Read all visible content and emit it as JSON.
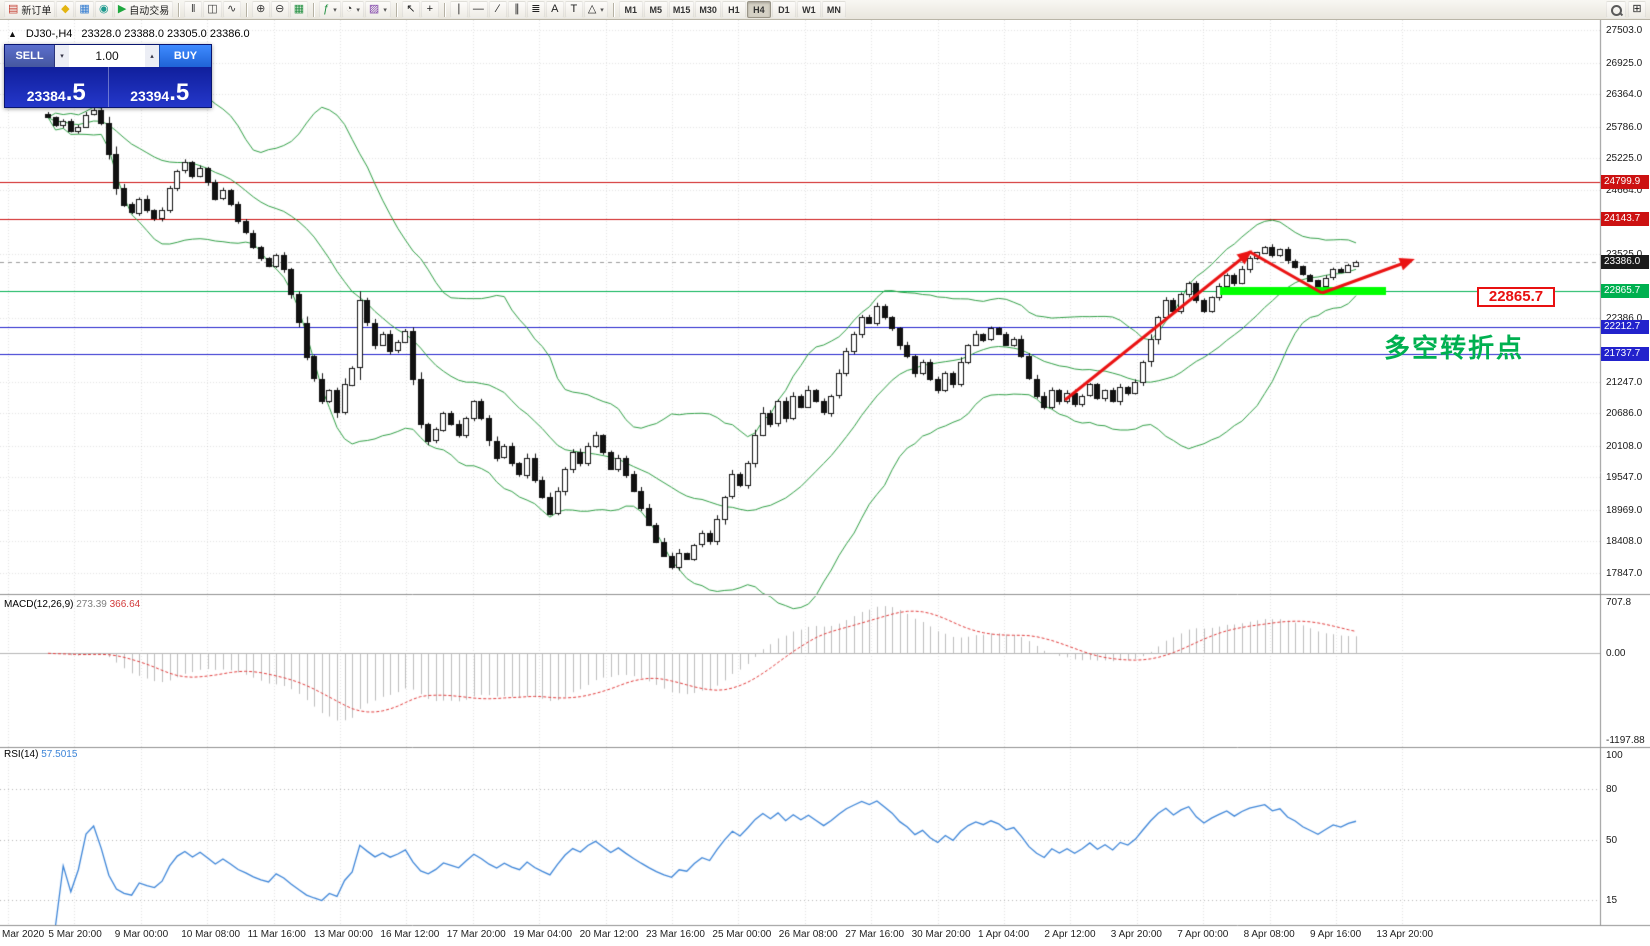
{
  "icons": {
    "caret_down": "▾",
    "caret_up": "▴",
    "collapse": "▲",
    "windows": "⊞"
  },
  "toolbar": {
    "items": [
      {
        "type": "button",
        "name": "new-order-button",
        "glyph": "▤",
        "color": "#c33b2e",
        "label": "新订单"
      },
      {
        "type": "button",
        "name": "metaeditor-button",
        "glyph": "◆",
        "color": "#e3b410"
      },
      {
        "type": "button",
        "name": "market-button",
        "glyph": "▦",
        "color": "#2e79d0"
      },
      {
        "type": "button",
        "name": "data-window-button",
        "glyph": "◉",
        "color": "#1e9a8e"
      },
      {
        "type": "button",
        "name": "autotrading-button",
        "glyph": "▶",
        "color": "#1fa83f",
        "label": "自动交易"
      },
      {
        "type": "sep"
      },
      {
        "type": "button",
        "name": "bar-chart-button",
        "glyph": "‖",
        "color": "#3a3a3a"
      },
      {
        "type": "button",
        "name": "candlestick-chart-button",
        "glyph": "◫",
        "color": "#3a3a3a"
      },
      {
        "type": "button",
        "name": "line-chart-button",
        "glyph": "∿",
        "color": "#3a3a3a"
      },
      {
        "type": "sep"
      },
      {
        "type": "button",
        "name": "zoom-in-button",
        "glyph": "⊕",
        "color": "#3a3a3a"
      },
      {
        "type": "button",
        "name": "zoom-out-button",
        "glyph": "⊖",
        "color": "#3a3a3a"
      },
      {
        "type": "button",
        "name": "grid-button",
        "glyph": "▦",
        "color": "#1e8e3e"
      },
      {
        "type": "sep"
      },
      {
        "type": "button",
        "name": "indicators-button",
        "glyph": "ƒ",
        "color": "#1e8e3e",
        "caret": true
      },
      {
        "type": "button",
        "name": "periods-button",
        "glyph": "◔",
        "color": "#3a3a3a",
        "caret": true
      },
      {
        "type": "button",
        "name": "templates-button",
        "glyph": "▨",
        "color": "#7d3fa8",
        "caret": true
      },
      {
        "type": "sep"
      },
      {
        "type": "button",
        "name": "cursor-button",
        "glyph": "↖",
        "color": "#222222"
      },
      {
        "type": "button",
        "name": "crosshair-button",
        "glyph": "+",
        "color": "#222222"
      },
      {
        "type": "sep"
      },
      {
        "type": "button",
        "name": "vertical-line-button",
        "glyph": "∣",
        "color": "#222222"
      },
      {
        "type": "button",
        "name": "horizontal-line-button",
        "glyph": "—",
        "color": "#222222"
      },
      {
        "type": "button",
        "name": "trendline-button",
        "glyph": "∕",
        "color": "#222222"
      },
      {
        "type": "button",
        "name": "channel-button",
        "glyph": "∥",
        "color": "#222222"
      },
      {
        "type": "button",
        "name": "fibonacci-button",
        "glyph": "≣",
        "color": "#222222"
      },
      {
        "type": "button",
        "name": "text-button",
        "glyph": "A",
        "color": "#222222"
      },
      {
        "type": "button",
        "name": "text-label-button",
        "glyph": "T",
        "color": "#222222"
      },
      {
        "type": "button",
        "name": "shapes-button",
        "glyph": "△",
        "color": "#222222",
        "caret": true
      },
      {
        "type": "sep"
      },
      {
        "type": "tf",
        "name": "timeframe-m1-button",
        "label": "M1"
      },
      {
        "type": "tf",
        "name": "timeframe-m5-button",
        "label": "M5"
      },
      {
        "type": "tf",
        "name": "timeframe-m15-button",
        "label": "M15"
      },
      {
        "type": "tf",
        "name": "timeframe-m30-button",
        "label": "M30"
      },
      {
        "type": "tf",
        "name": "timeframe-h1-button",
        "label": "H1"
      },
      {
        "type": "tf",
        "name": "timeframe-h4-button",
        "label": "H4",
        "active": true
      },
      {
        "type": "tf",
        "name": "timeframe-d1-button",
        "label": "D1"
      },
      {
        "type": "tf",
        "name": "timeframe-w1-button",
        "label": "W1"
      },
      {
        "type": "tf",
        "name": "timeframe-mn-button",
        "label": "MN"
      }
    ]
  },
  "trade_panel": {
    "sell_label": "SELL",
    "buy_label": "BUY",
    "lot_size": "1.00",
    "sell_price_main": "23384",
    "sell_price_frac": ".5",
    "buy_price_main": "23394",
    "buy_price_frac": ".5"
  },
  "chart_data": {
    "type": "candlestick",
    "symbol": "DJ30-",
    "period": "H4",
    "title": "DJ30-,H4",
    "ohlc_text": "23328.0 23388.0 23305.0 23386.0",
    "price_range": {
      "top": 27503.0,
      "bottom": 17847.0
    },
    "price_ticks": [
      "27503.0",
      "26925.0",
      "26364.0",
      "25786.0",
      "25225.0",
      "24664.0",
      "23525.0",
      "22386.0",
      "21247.0",
      "20686.0",
      "20108.0",
      "19547.0",
      "18969.0",
      "18408.0",
      "17847.0"
    ],
    "levels": [
      {
        "price": 24799.9,
        "label": "24799.9",
        "color": "#cc1111"
      },
      {
        "price": 24143.7,
        "label": "24143.7",
        "color": "#cc1111"
      },
      {
        "price": 22865.7,
        "label": "22865.7",
        "color": "#00b050"
      },
      {
        "price": 22212.7,
        "label": "22212.7",
        "color": "#2222cc"
      },
      {
        "price": 21737.7,
        "label": "21737.7",
        "color": "#2222cc"
      }
    ],
    "current_price": {
      "price": 23386.0,
      "label": "23386.0",
      "color": "#1b1b1b"
    },
    "closes": [
      25950,
      25800,
      25880,
      25700,
      25780,
      26000,
      26080,
      25850,
      25300,
      24700,
      24400,
      24250,
      24500,
      24300,
      24150,
      24300,
      24700,
      25000,
      25150,
      24900,
      25050,
      24800,
      24500,
      24650,
      24400,
      24100,
      23900,
      23650,
      23450,
      23300,
      23500,
      23250,
      22800,
      22300,
      21700,
      21300,
      20900,
      21100,
      20700,
      21200,
      21500,
      22700,
      22300,
      21900,
      22100,
      21800,
      21950,
      22150,
      21300,
      20500,
      20200,
      20400,
      20700,
      20500,
      20300,
      20600,
      20900,
      20600,
      20200,
      19900,
      20100,
      19800,
      19600,
      19900,
      19500,
      19200,
      18900,
      19300,
      19700,
      20000,
      19800,
      20100,
      20300,
      20000,
      19700,
      19900,
      19600,
      19300,
      19000,
      18700,
      18400,
      18150,
      17950,
      18200,
      18100,
      18350,
      18550,
      18400,
      18800,
      19200,
      19600,
      19400,
      19800,
      20300,
      20700,
      20500,
      20900,
      20600,
      21000,
      20800,
      21100,
      20900,
      20700,
      21000,
      21400,
      21800,
      22100,
      22400,
      22300,
      22600,
      22400,
      22200,
      21900,
      21700,
      21400,
      21600,
      21300,
      21100,
      21400,
      21200,
      21600,
      21900,
      22100,
      22000,
      22200,
      22100,
      21900,
      22000,
      21700,
      21300,
      21000,
      20800,
      21100,
      20900,
      21050,
      20850,
      21000,
      21200,
      20950,
      21100,
      20900,
      21150,
      21050,
      21250,
      21600,
      22000,
      22400,
      22700,
      22500,
      22800,
      23000,
      22700,
      22500,
      22750,
      22950,
      23150,
      23000,
      23250,
      23450,
      23550,
      23650,
      23500,
      23600,
      23400,
      23300,
      23150,
      23050,
      22950,
      23100,
      23250,
      23200,
      23320,
      23386
    ],
    "candle_colors": {
      "bull": "#ffffff",
      "bear": "#111111",
      "outline": "#111111"
    },
    "bollinger": {
      "period": 20,
      "deviations": 2,
      "color": "#2f9e44"
    },
    "time_labels": [
      "Mar 2020",
      "5 Mar 20:00",
      "9 Mar 00:00",
      "10 Mar 08:00",
      "11 Mar 16:00",
      "13 Mar 00:00",
      "16 Mar 12:00",
      "17 Mar 20:00",
      "19 Mar 04:00",
      "20 Mar 12:00",
      "23 Mar 16:00",
      "25 Mar 00:00",
      "26 Mar 08:00",
      "27 Mar 16:00",
      "30 Mar 20:00",
      "1 Apr 04:00",
      "2 Apr 12:00",
      "3 Apr 20:00",
      "7 Apr 00:00",
      "8 Apr 08:00",
      "9 Apr 16:00",
      "13 Apr 20:00"
    ],
    "indicators": {
      "macd": {
        "name": "MACD(12,26,9)",
        "value_main": "273.39",
        "value_signal": "366.64",
        "ticks": [
          "707.8",
          "0.00",
          "-1197.88"
        ],
        "histogram_color": "#bdbdbd",
        "signal_color": "#e03b3b"
      },
      "rsi": {
        "name": "RSI(14)",
        "value": "57.5015",
        "ticks": [
          "100",
          "80",
          "50",
          "15"
        ],
        "level_lines": [
          80,
          50,
          15
        ],
        "line_color": "#3d85d8"
      }
    },
    "annotations": {
      "support_label": "22865.7",
      "label_color": "#e81111",
      "note_text": "多空转折点",
      "note_color": "#00b050",
      "arrow_color": "#ea1212",
      "bar_color": "#00ff00"
    }
  }
}
